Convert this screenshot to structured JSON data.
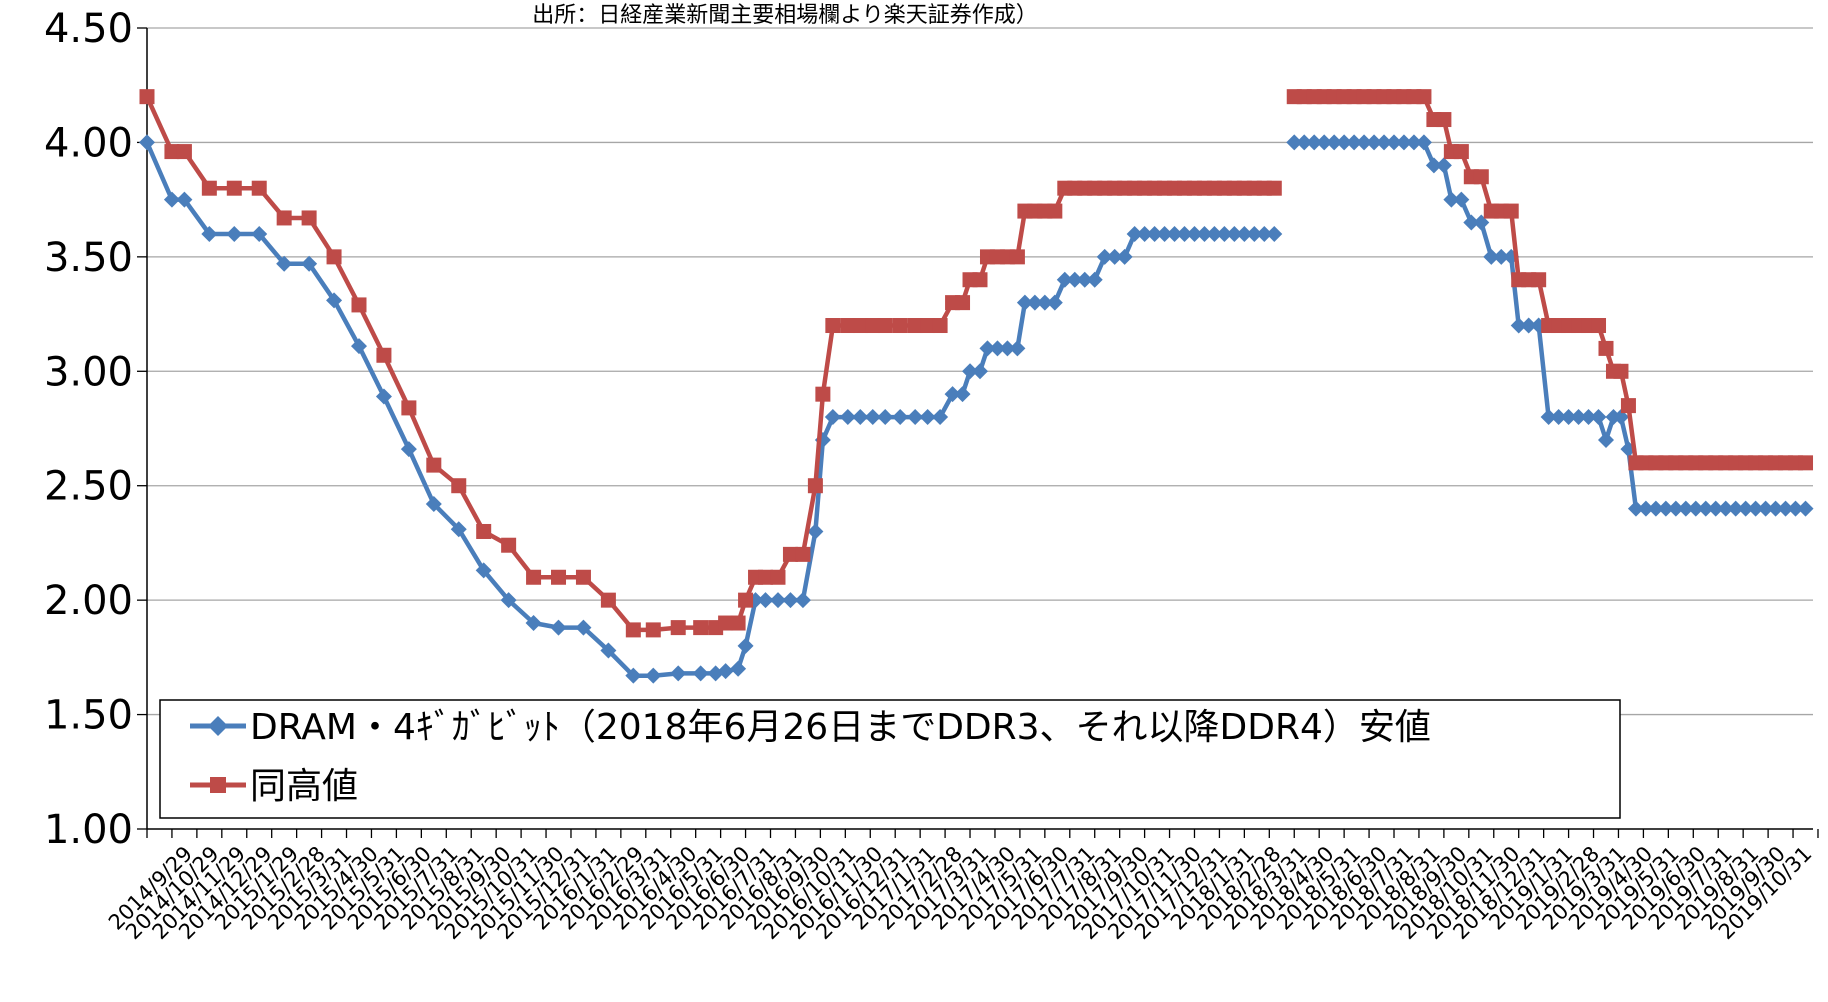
{
  "chart_data": {
    "type": "line",
    "title": "出所：日経産業新聞主要相場欄より楽天証券作成）",
    "xlabel": "",
    "ylabel": "",
    "ylim": [
      1.0,
      4.5
    ],
    "yticks": [
      "1.00",
      "1.50",
      "2.00",
      "2.50",
      "3.00",
      "3.50",
      "4.00",
      "4.50"
    ],
    "grid": true,
    "legend_position": "bottom-left",
    "x_tick_labels": [
      "2014/9/29",
      "2014/10/29",
      "2014/11/29",
      "2014/12/29",
      "2015/1/29",
      "2015/2/28",
      "2015/3/31",
      "2015/4/30",
      "2015/5/31",
      "2015/6/30",
      "2015/7/31",
      "2015/8/31",
      "2015/9/30",
      "2015/10/31",
      "2015/11/30",
      "2015/12/31",
      "2016/1/31",
      "2016/2/29",
      "2016/3/31",
      "2016/4/30",
      "2016/5/31",
      "2016/6/30",
      "2016/7/31",
      "2016/8/31",
      "2016/9/30",
      "2016/10/31",
      "2016/11/30",
      "2016/12/31",
      "2017/1/31",
      "2017/2/28",
      "2017/3/31",
      "2017/4/30",
      "2017/5/31",
      "2017/6/30",
      "2017/7/31",
      "2017/8/31",
      "2017/9/30",
      "2017/10/31",
      "2017/11/30",
      "2017/12/31",
      "2018/1/31",
      "2018/2/28",
      "2018/3/31",
      "2018/4/30",
      "2018/5/31",
      "2018/6/30",
      "2018/7/31",
      "2018/8/31",
      "2018/9/30",
      "2018/10/31",
      "2018/11/30",
      "2018/12/31",
      "2019/1/31",
      "2019/2/28",
      "2019/3/31",
      "2019/4/30",
      "2019/5/31",
      "2019/6/30",
      "2019/7/31",
      "2019/8/31",
      "2019/9/30",
      "2019/10/31"
    ],
    "series": [
      {
        "name": "DRAM・4ｷﾞｶﾞﾋﾞｯﾄ（2018年6月26日までDDR3、それ以降DDR4）安値",
        "color": "#4a7ebb",
        "marker": "diamond",
        "points": [
          [
            0,
            4.0
          ],
          [
            1,
            3.75
          ],
          [
            1.5,
            3.75
          ],
          [
            2.5,
            3.6
          ],
          [
            3.5,
            3.6
          ],
          [
            4.5,
            3.6
          ],
          [
            5.5,
            3.47
          ],
          [
            6.5,
            3.47
          ],
          [
            7.5,
            3.31
          ],
          [
            8.5,
            3.11
          ],
          [
            9.5,
            2.89
          ],
          [
            10.5,
            2.66
          ],
          [
            11.5,
            2.42
          ],
          [
            12.5,
            2.31
          ],
          [
            13.5,
            2.13
          ],
          [
            14.5,
            2.0
          ],
          [
            15.5,
            1.9
          ],
          [
            16.5,
            1.88
          ],
          [
            17.5,
            1.88
          ],
          [
            18.5,
            1.78
          ],
          [
            19.5,
            1.67
          ],
          [
            20.3,
            1.67
          ],
          [
            21.3,
            1.68
          ],
          [
            22.2,
            1.68
          ],
          [
            22.8,
            1.68
          ],
          [
            23.2,
            1.69
          ],
          [
            23.7,
            1.7
          ],
          [
            24.0,
            1.8
          ],
          [
            24.4,
            2.0
          ],
          [
            24.8,
            2.0
          ],
          [
            25.3,
            2.0
          ],
          [
            25.8,
            2.0
          ],
          [
            26.3,
            2.0
          ],
          [
            26.8,
            2.3
          ],
          [
            27.1,
            2.7
          ],
          [
            27.5,
            2.8
          ],
          [
            28.1,
            2.8
          ],
          [
            28.6,
            2.8
          ],
          [
            29.1,
            2.8
          ],
          [
            29.6,
            2.8
          ],
          [
            30.2,
            2.8
          ],
          [
            30.8,
            2.8
          ],
          [
            31.3,
            2.8
          ],
          [
            31.8,
            2.8
          ],
          [
            32.3,
            2.9
          ],
          [
            32.7,
            2.9
          ],
          [
            33.0,
            3.0
          ],
          [
            33.4,
            3.0
          ],
          [
            33.7,
            3.1
          ],
          [
            34.1,
            3.1
          ],
          [
            34.5,
            3.1
          ],
          [
            34.9,
            3.1
          ],
          [
            35.2,
            3.3
          ],
          [
            35.6,
            3.3
          ],
          [
            36.0,
            3.3
          ],
          [
            36.4,
            3.3
          ],
          [
            36.8,
            3.4
          ],
          [
            37.2,
            3.4
          ],
          [
            37.6,
            3.4
          ],
          [
            38.0,
            3.4
          ],
          [
            38.4,
            3.5
          ],
          [
            38.8,
            3.5
          ],
          [
            39.2,
            3.5
          ],
          [
            39.6,
            3.6
          ],
          [
            40.0,
            3.6
          ],
          [
            40.4,
            3.6
          ],
          [
            40.8,
            3.6
          ],
          [
            41.2,
            3.6
          ],
          [
            41.6,
            3.6
          ],
          [
            42.0,
            3.6
          ],
          [
            42.4,
            3.6
          ],
          [
            42.8,
            3.6
          ],
          [
            43.2,
            3.6
          ],
          [
            43.6,
            3.6
          ],
          [
            44.0,
            3.6
          ],
          [
            44.4,
            3.6
          ],
          [
            44.8,
            3.6
          ],
          [
            45.2,
            3.6
          ],
          null,
          [
            46.0,
            4.0
          ],
          [
            46.4,
            4.0
          ],
          [
            46.8,
            4.0
          ],
          [
            47.2,
            4.0
          ],
          [
            47.6,
            4.0
          ],
          [
            48.0,
            4.0
          ],
          [
            48.4,
            4.0
          ],
          [
            48.8,
            4.0
          ],
          [
            49.2,
            4.0
          ],
          [
            49.6,
            4.0
          ],
          [
            50.0,
            4.0
          ],
          [
            50.4,
            4.0
          ],
          [
            50.8,
            4.0
          ],
          [
            51.2,
            4.0
          ],
          [
            51.6,
            3.9
          ],
          [
            52.0,
            3.9
          ],
          [
            52.3,
            3.75
          ],
          [
            52.7,
            3.75
          ],
          [
            53.1,
            3.65
          ],
          [
            53.5,
            3.65
          ],
          [
            53.9,
            3.5
          ],
          [
            54.3,
            3.5
          ],
          [
            54.7,
            3.5
          ],
          [
            55.0,
            3.2
          ],
          [
            55.4,
            3.2
          ],
          [
            55.8,
            3.2
          ],
          [
            56.2,
            2.8
          ],
          [
            56.6,
            2.8
          ],
          [
            57.0,
            2.8
          ],
          [
            57.4,
            2.8
          ],
          [
            57.8,
            2.8
          ],
          [
            58.2,
            2.8
          ],
          [
            58.5,
            2.7
          ],
          [
            58.8,
            2.8
          ],
          [
            59.1,
            2.8
          ],
          [
            59.4,
            2.66
          ],
          [
            59.7,
            2.4
          ],
          [
            60.1,
            2.4
          ],
          [
            60.5,
            2.4
          ],
          [
            60.9,
            2.4
          ],
          [
            61.3,
            2.4
          ],
          [
            61.7,
            2.4
          ],
          [
            62.1,
            2.4
          ],
          [
            62.5,
            2.4
          ],
          [
            62.9,
            2.4
          ],
          [
            63.3,
            2.4
          ],
          [
            63.7,
            2.4
          ],
          [
            64.1,
            2.4
          ],
          [
            64.5,
            2.4
          ],
          [
            64.9,
            2.4
          ],
          [
            65.3,
            2.4
          ],
          [
            65.7,
            2.4
          ],
          [
            66.1,
            2.4
          ],
          [
            66.5,
            2.4
          ]
        ]
      },
      {
        "name": "同高値",
        "color": "#be4b48",
        "marker": "square",
        "points": [
          [
            0,
            4.2
          ],
          [
            1,
            3.96
          ],
          [
            1.5,
            3.96
          ],
          [
            2.5,
            3.8
          ],
          [
            3.5,
            3.8
          ],
          [
            4.5,
            3.8
          ],
          [
            5.5,
            3.67
          ],
          [
            6.5,
            3.67
          ],
          [
            7.5,
            3.5
          ],
          [
            8.5,
            3.29
          ],
          [
            9.5,
            3.07
          ],
          [
            10.5,
            2.84
          ],
          [
            11.5,
            2.59
          ],
          [
            12.5,
            2.5
          ],
          [
            13.5,
            2.3
          ],
          [
            14.5,
            2.24
          ],
          [
            15.5,
            2.1
          ],
          [
            16.5,
            2.1
          ],
          [
            17.5,
            2.1
          ],
          [
            18.5,
            2.0
          ],
          [
            19.5,
            1.87
          ],
          [
            20.3,
            1.87
          ],
          [
            21.3,
            1.88
          ],
          [
            22.2,
            1.88
          ],
          [
            22.8,
            1.88
          ],
          [
            23.2,
            1.9
          ],
          [
            23.7,
            1.9
          ],
          [
            24.0,
            2.0
          ],
          [
            24.4,
            2.1
          ],
          [
            24.8,
            2.1
          ],
          [
            25.3,
            2.1
          ],
          [
            25.8,
            2.2
          ],
          [
            26.3,
            2.2
          ],
          [
            26.8,
            2.5
          ],
          [
            27.1,
            2.9
          ],
          [
            27.5,
            3.2
          ],
          [
            28.1,
            3.2
          ],
          [
            28.6,
            3.2
          ],
          [
            29.1,
            3.2
          ],
          [
            29.6,
            3.2
          ],
          [
            30.2,
            3.2
          ],
          [
            30.8,
            3.2
          ],
          [
            31.3,
            3.2
          ],
          [
            31.8,
            3.2
          ],
          [
            32.3,
            3.3
          ],
          [
            32.7,
            3.3
          ],
          [
            33.0,
            3.4
          ],
          [
            33.4,
            3.4
          ],
          [
            33.7,
            3.5
          ],
          [
            34.1,
            3.5
          ],
          [
            34.5,
            3.5
          ],
          [
            34.9,
            3.5
          ],
          [
            35.2,
            3.7
          ],
          [
            35.6,
            3.7
          ],
          [
            36.0,
            3.7
          ],
          [
            36.4,
            3.7
          ],
          [
            36.8,
            3.8
          ],
          [
            37.2,
            3.8
          ],
          [
            37.6,
            3.8
          ],
          [
            38.0,
            3.8
          ],
          [
            38.4,
            3.8
          ],
          [
            38.8,
            3.8
          ],
          [
            39.2,
            3.8
          ],
          [
            39.6,
            3.8
          ],
          [
            40.0,
            3.8
          ],
          [
            40.4,
            3.8
          ],
          [
            40.8,
            3.8
          ],
          [
            41.2,
            3.8
          ],
          [
            41.6,
            3.8
          ],
          [
            42.0,
            3.8
          ],
          [
            42.4,
            3.8
          ],
          [
            42.8,
            3.8
          ],
          [
            43.2,
            3.8
          ],
          [
            43.6,
            3.8
          ],
          [
            44.0,
            3.8
          ],
          [
            44.4,
            3.8
          ],
          [
            44.8,
            3.8
          ],
          [
            45.2,
            3.8
          ],
          null,
          [
            46.0,
            4.2
          ],
          [
            46.4,
            4.2
          ],
          [
            46.8,
            4.2
          ],
          [
            47.2,
            4.2
          ],
          [
            47.6,
            4.2
          ],
          [
            48.0,
            4.2
          ],
          [
            48.4,
            4.2
          ],
          [
            48.8,
            4.2
          ],
          [
            49.2,
            4.2
          ],
          [
            49.6,
            4.2
          ],
          [
            50.0,
            4.2
          ],
          [
            50.4,
            4.2
          ],
          [
            50.8,
            4.2
          ],
          [
            51.2,
            4.2
          ],
          [
            51.6,
            4.1
          ],
          [
            52.0,
            4.1
          ],
          [
            52.3,
            3.96
          ],
          [
            52.7,
            3.96
          ],
          [
            53.1,
            3.85
          ],
          [
            53.5,
            3.85
          ],
          [
            53.9,
            3.7
          ],
          [
            54.3,
            3.7
          ],
          [
            54.7,
            3.7
          ],
          [
            55.0,
            3.4
          ],
          [
            55.4,
            3.4
          ],
          [
            55.8,
            3.4
          ],
          [
            56.2,
            3.2
          ],
          [
            56.6,
            3.2
          ],
          [
            57.0,
            3.2
          ],
          [
            57.4,
            3.2
          ],
          [
            57.8,
            3.2
          ],
          [
            58.2,
            3.2
          ],
          [
            58.5,
            3.1
          ],
          [
            58.8,
            3.0
          ],
          [
            59.1,
            3.0
          ],
          [
            59.4,
            2.85
          ],
          [
            59.7,
            2.6
          ],
          [
            60.1,
            2.6
          ],
          [
            60.5,
            2.6
          ],
          [
            60.9,
            2.6
          ],
          [
            61.3,
            2.6
          ],
          [
            61.7,
            2.6
          ],
          [
            62.1,
            2.6
          ],
          [
            62.5,
            2.6
          ],
          [
            62.9,
            2.6
          ],
          [
            63.3,
            2.6
          ],
          [
            63.7,
            2.6
          ],
          [
            64.1,
            2.6
          ],
          [
            64.5,
            2.6
          ],
          [
            64.9,
            2.6
          ],
          [
            65.3,
            2.6
          ],
          [
            65.7,
            2.6
          ],
          [
            66.1,
            2.6
          ],
          [
            66.5,
            2.6
          ]
        ]
      }
    ]
  }
}
